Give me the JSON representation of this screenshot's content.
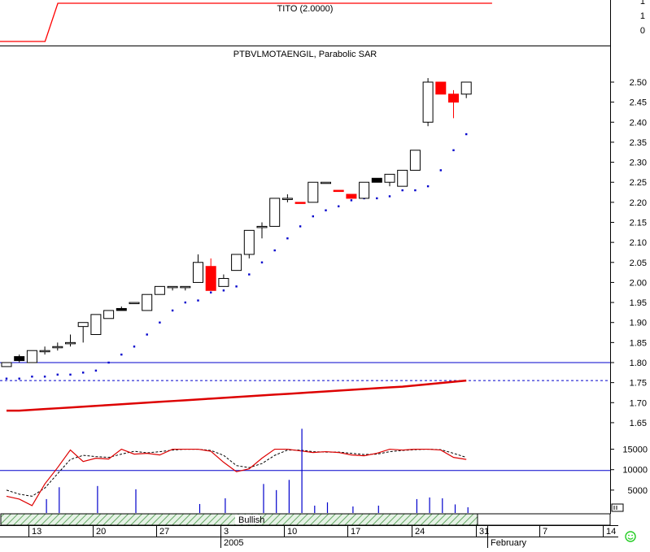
{
  "indicator": {
    "title": "TITO (2.0000)",
    "ticks": [
      "1",
      "1",
      "0"
    ],
    "segments": [
      [
        0,
        0
      ],
      [
        2,
        0
      ],
      [
        3,
        1
      ],
      [
        37,
        1
      ]
    ]
  },
  "main": {
    "title": "PTBVLMOTAENGIL, Parabolic SAR",
    "price_ticks": [
      "2.50",
      "2.45",
      "2.40",
      "2.35",
      "2.30",
      "2.25",
      "2.20",
      "2.15",
      "2.10",
      "2.05",
      "2.00",
      "1.95",
      "1.90",
      "1.85",
      "1.80",
      "1.75",
      "1.70",
      "1.65"
    ],
    "oscillator_ticks": [
      "15000",
      "10000",
      "5000"
    ],
    "band_label": "Bullish",
    "x_day_labels": [
      "13",
      "20",
      "27",
      "3",
      "10",
      "17",
      "24",
      "31",
      "7",
      "14"
    ],
    "x_month_labels": [
      "2005",
      "February"
    ]
  },
  "colors": {
    "up_fill": "#ffffff",
    "black_candle": "#000000",
    "red_candle": "#ff0000",
    "sar_dots": "#0000cc",
    "reference_line": "#0000cc",
    "moving_average": "#dd0000",
    "band_hatch": "#66aa66",
    "smiley": "#22cc22"
  },
  "chart_data": {
    "type": "candlestick",
    "title": "PTBVLMOTAENGIL, Parabolic SAR",
    "x_dates": [
      "2005-01-10",
      "2005-01-11",
      "2005-01-12",
      "2005-01-13",
      "2005-01-14",
      "2005-01-17",
      "2005-01-18",
      "2005-01-19",
      "2005-01-20",
      "2005-01-21",
      "2005-01-24",
      "2005-01-25",
      "2005-01-26",
      "2005-01-27",
      "2005-01-28",
      "2005-01-31",
      "2005-02-01",
      "2005-02-02",
      "2005-02-03",
      "2005-02-04",
      "2005-02-07",
      "2005-02-08",
      "2005-02-09",
      "2005-02-10",
      "2005-02-11",
      "2005-02-14",
      "2005-02-15",
      "2005-02-16",
      "2005-02-17",
      "2005-02-18",
      "2005-02-21",
      "2005-02-22",
      "2005-02-23",
      "2005-02-24",
      "2005-02-25",
      "2005-02-28",
      "2005-03-01"
    ],
    "candles": [
      {
        "o": 1.79,
        "h": 1.8,
        "l": 1.79,
        "c": 1.8,
        "color": "up"
      },
      {
        "o": 1.815,
        "h": 1.82,
        "l": 1.8,
        "c": 1.805,
        "color": "black"
      },
      {
        "o": 1.8,
        "h": 1.83,
        "l": 1.8,
        "c": 1.83,
        "color": "up"
      },
      {
        "o": 1.83,
        "h": 1.84,
        "l": 1.82,
        "c": 1.83,
        "color": "up"
      },
      {
        "o": 1.84,
        "h": 1.85,
        "l": 1.83,
        "c": 1.84,
        "color": "up"
      },
      {
        "o": 1.85,
        "h": 1.87,
        "l": 1.84,
        "c": 1.85,
        "color": "up"
      },
      {
        "o": 1.89,
        "h": 1.9,
        "l": 1.85,
        "c": 1.9,
        "color": "up"
      },
      {
        "o": 1.87,
        "h": 1.92,
        "l": 1.87,
        "c": 1.92,
        "color": "up"
      },
      {
        "o": 1.91,
        "h": 1.93,
        "l": 1.91,
        "c": 1.93,
        "color": "up"
      },
      {
        "o": 1.935,
        "h": 1.94,
        "l": 1.93,
        "c": 1.93,
        "color": "black"
      },
      {
        "o": 1.95,
        "h": 1.95,
        "l": 1.95,
        "c": 1.95,
        "color": "up"
      },
      {
        "o": 1.93,
        "h": 1.97,
        "l": 1.93,
        "c": 1.97,
        "color": "up"
      },
      {
        "o": 1.97,
        "h": 1.99,
        "l": 1.97,
        "c": 1.99,
        "color": "up"
      },
      {
        "o": 1.99,
        "h": 1.99,
        "l": 1.98,
        "c": 1.99,
        "color": "up"
      },
      {
        "o": 1.99,
        "h": 1.99,
        "l": 1.98,
        "c": 1.99,
        "color": "up"
      },
      {
        "o": 2.0,
        "h": 2.07,
        "l": 2.0,
        "c": 2.05,
        "color": "up"
      },
      {
        "o": 2.04,
        "h": 2.06,
        "l": 1.98,
        "c": 1.98,
        "color": "red"
      },
      {
        "o": 1.99,
        "h": 2.02,
        "l": 1.99,
        "c": 2.01,
        "color": "up"
      },
      {
        "o": 2.03,
        "h": 2.07,
        "l": 2.03,
        "c": 2.07,
        "color": "up"
      },
      {
        "o": 2.07,
        "h": 2.13,
        "l": 2.06,
        "c": 2.13,
        "color": "up"
      },
      {
        "o": 2.14,
        "h": 2.15,
        "l": 2.11,
        "c": 2.14,
        "color": "up"
      },
      {
        "o": 2.14,
        "h": 2.21,
        "l": 2.14,
        "c": 2.21,
        "color": "up"
      },
      {
        "o": 2.21,
        "h": 2.22,
        "l": 2.2,
        "c": 2.21,
        "color": "up"
      },
      {
        "o": 2.2,
        "h": 2.2,
        "l": 2.2,
        "c": 2.2,
        "color": "red"
      },
      {
        "o": 2.2,
        "h": 2.25,
        "l": 2.2,
        "c": 2.25,
        "color": "up"
      },
      {
        "o": 2.25,
        "h": 2.25,
        "l": 2.25,
        "c": 2.25,
        "color": "up"
      },
      {
        "o": 2.23,
        "h": 2.23,
        "l": 2.23,
        "c": 2.23,
        "color": "red"
      },
      {
        "o": 2.22,
        "h": 2.22,
        "l": 2.21,
        "c": 2.21,
        "color": "red"
      },
      {
        "o": 2.21,
        "h": 2.25,
        "l": 2.21,
        "c": 2.25,
        "color": "up"
      },
      {
        "o": 2.26,
        "h": 2.26,
        "l": 2.25,
        "c": 2.25,
        "color": "black"
      },
      {
        "o": 2.25,
        "h": 2.27,
        "l": 2.24,
        "c": 2.27,
        "color": "up"
      },
      {
        "o": 2.24,
        "h": 2.28,
        "l": 2.24,
        "c": 2.28,
        "color": "up"
      },
      {
        "o": 2.28,
        "h": 2.33,
        "l": 2.28,
        "c": 2.33,
        "color": "up"
      },
      {
        "o": 2.4,
        "h": 2.51,
        "l": 2.39,
        "c": 2.5,
        "color": "up"
      },
      {
        "o": 2.5,
        "h": 2.5,
        "l": 2.47,
        "c": 2.47,
        "color": "red"
      },
      {
        "o": 2.47,
        "h": 2.48,
        "l": 2.41,
        "c": 2.45,
        "color": "red"
      },
      {
        "o": 2.47,
        "h": 2.5,
        "l": 2.46,
        "c": 2.5,
        "color": "up"
      }
    ],
    "sar": [
      1.76,
      1.76,
      1.765,
      1.765,
      1.77,
      1.77,
      1.775,
      1.78,
      1.8,
      1.82,
      1.84,
      1.87,
      1.9,
      1.93,
      1.95,
      1.955,
      1.975,
      1.98,
      1.99,
      2.02,
      2.05,
      2.08,
      2.11,
      2.14,
      2.165,
      2.18,
      2.19,
      2.205,
      2.21,
      2.21,
      2.215,
      2.23,
      2.23,
      2.24,
      2.28,
      2.33,
      2.37
    ],
    "reference_line": 1.8,
    "dashed_line": 1.755,
    "moving_average": [
      1.68,
      1.68,
      1.682,
      1.684,
      1.686,
      1.688,
      1.69,
      1.692,
      1.694,
      1.696,
      1.698,
      1.7,
      1.702,
      1.704,
      1.706,
      1.708,
      1.71,
      1.712,
      1.714,
      1.716,
      1.718,
      1.72,
      1.722,
      1.724,
      1.726,
      1.728,
      1.73,
      1.732,
      1.734,
      1.736,
      1.738,
      1.74,
      1.743,
      1.746,
      1.749,
      1.752,
      1.755
    ],
    "oscillator": [
      3500,
      2800,
      1200,
      6500,
      10500,
      14800,
      12000,
      12800,
      12600,
      15000,
      13800,
      14000,
      13600,
      15000,
      15000,
      15000,
      14500,
      11800,
      9500,
      10200,
      12800,
      15000,
      15000,
      14600,
      14200,
      14400,
      14200,
      13600,
      13400,
      14000,
      15000,
      14800,
      15000,
      15000,
      14800,
      13000,
      12500
    ],
    "oscillator_signal": [
      5000,
      4000,
      3500,
      5500,
      9000,
      12500,
      13500,
      13200,
      13000,
      13800,
      14500,
      14100,
      14400,
      14800,
      15000,
      15000,
      14700,
      13500,
      11000,
      10500,
      11500,
      13500,
      14800,
      14800,
      14400,
      14300,
      14300,
      14000,
      13700,
      13800,
      14400,
      14700,
      14900,
      15000,
      14900,
      14000,
      13000
    ],
    "oscillator_ref": 9800,
    "volume": [
      0,
      0,
      0,
      2800,
      0,
      0,
      6000,
      0,
      0,
      6000,
      0,
      0,
      5200,
      0,
      0,
      0,
      1600,
      0,
      0,
      3000,
      0,
      6500,
      0,
      0,
      1200,
      0,
      0,
      0,
      0,
      9000,
      0,
      0,
      0,
      0,
      0,
      0,
      0
    ],
    "volume_full": [
      0,
      0,
      0,
      2800,
      5700,
      0,
      0,
      6000,
      0,
      0,
      5200,
      0,
      0,
      0,
      0,
      1600,
      0,
      3000,
      0,
      0,
      6500,
      5000,
      7500,
      20000,
      1200,
      2000,
      0,
      1000,
      0,
      1200,
      0,
      0,
      2800,
      3200,
      3000,
      1500,
      800
    ],
    "ylim": [
      1.61,
      2.52
    ]
  }
}
